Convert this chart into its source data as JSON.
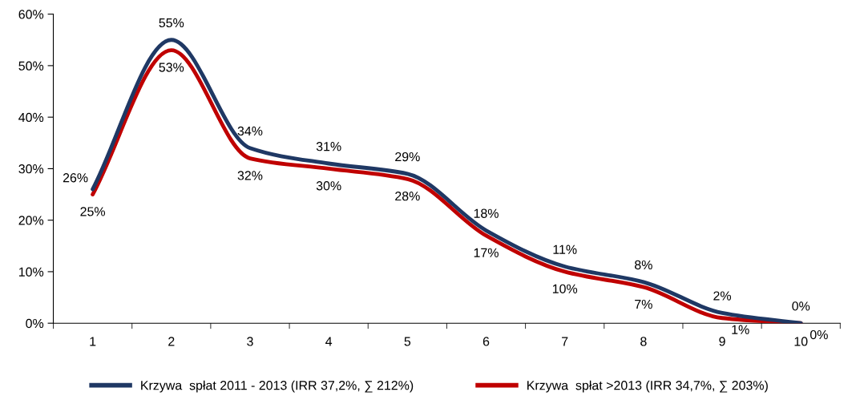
{
  "chart_data": {
    "type": "line",
    "categories": [
      "1",
      "2",
      "3",
      "4",
      "5",
      "6",
      "7",
      "8",
      "9",
      "10"
    ],
    "ylim": [
      0,
      60
    ],
    "yticks": [
      {
        "value": 0,
        "label": "0%"
      },
      {
        "value": 10,
        "label": "10%"
      },
      {
        "value": 20,
        "label": "20%"
      },
      {
        "value": 30,
        "label": "30%"
      },
      {
        "value": 40,
        "label": "40%"
      },
      {
        "value": 50,
        "label": "50%"
      },
      {
        "value": 60,
        "label": "60%"
      }
    ],
    "grid": false,
    "legend": "bottom",
    "marker": "none",
    "line_style": "solid",
    "series": [
      {
        "name": "Krzywa  spłat 2011 - 2013 (IRR 37,2%, ∑ 212%)",
        "color": "#1f3864",
        "values": [
          26,
          55,
          34,
          31,
          29,
          18,
          11,
          8,
          2,
          0
        ],
        "value_labels": [
          "26%",
          "55%",
          "34%",
          "31%",
          "29%",
          "18%",
          "11%",
          "8%",
          "2%",
          "0%"
        ]
      },
      {
        "name": "Krzywa  spłat >2013 (IRR 34,7%, ∑ 203%)",
        "color": "#c00000",
        "values": [
          25,
          53,
          32,
          30,
          28,
          17,
          10,
          7,
          1,
          0
        ],
        "value_labels": [
          "25%",
          "53%",
          "32%",
          "30%",
          "28%",
          "17%",
          "10%",
          "7%",
          "1%",
          "0%"
        ]
      }
    ]
  }
}
